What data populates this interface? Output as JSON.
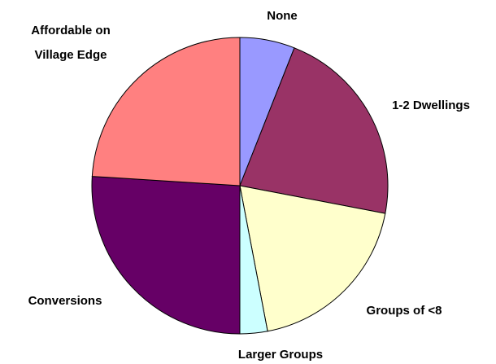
{
  "chart_data": {
    "type": "pie",
    "categories": [
      "None",
      "1-2 Dwellings",
      "Groups of <8",
      "Larger Groups",
      "Conversions",
      "Affordable on Village Edge"
    ],
    "values": [
      6,
      22,
      19,
      3,
      26,
      24
    ],
    "colors": [
      "#9999ff",
      "#993366",
      "#ffffcc",
      "#ccffff",
      "#660066",
      "#ff8080"
    ]
  }
}
